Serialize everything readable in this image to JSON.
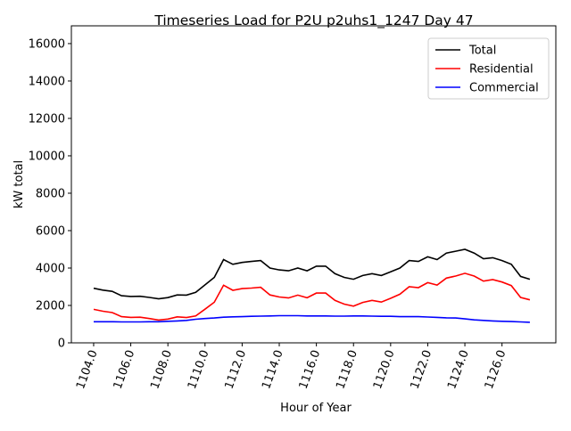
{
  "chart_data": {
    "type": "line",
    "title": "Timeseries Load for P2U p2uhs1_1247  Day 47",
    "xlabel": "Hour of Year",
    "ylabel": "kW total",
    "xlim": [
      1102.8,
      1128.9
    ],
    "ylim": [
      0,
      16950
    ],
    "xticks": [
      "1104.0",
      "1106.0",
      "1108.0",
      "1110.0",
      "1112.0",
      "1114.0",
      "1116.0",
      "1118.0",
      "1120.0",
      "1122.0",
      "1124.0",
      "1126.0"
    ],
    "xtick_values": [
      1104,
      1106,
      1108,
      1110,
      1112,
      1114,
      1116,
      1118,
      1120,
      1122,
      1124,
      1126
    ],
    "yticks": [
      "0",
      "2000",
      "4000",
      "6000",
      "8000",
      "10000",
      "12000",
      "14000",
      "16000"
    ],
    "ytick_values": [
      0,
      2000,
      4000,
      6000,
      8000,
      10000,
      12000,
      14000,
      16000
    ],
    "legend_position": "top-right",
    "x_start": 1104,
    "x_step": 0.5,
    "series": [
      {
        "name": "Total",
        "color": "#000000",
        "values": [
          2920,
          2820,
          2750,
          2520,
          2480,
          2490,
          2430,
          2350,
          2420,
          2560,
          2550,
          2700,
          3100,
          3500,
          4450,
          4200,
          4300,
          4350,
          4400,
          4000,
          3900,
          3850,
          4000,
          3850,
          4100,
          4100,
          3700,
          3500,
          3400,
          3600,
          3700,
          3600,
          3800,
          4000,
          4400,
          4350,
          4600,
          4450,
          4800,
          4900,
          5000,
          4800,
          4500,
          4550,
          4400,
          4200,
          3550,
          3400
        ]
      },
      {
        "name": "Residential",
        "color": "#ff0000",
        "values": [
          1790,
          1690,
          1620,
          1400,
          1360,
          1370,
          1300,
          1220,
          1270,
          1390,
          1350,
          1440,
          1800,
          2170,
          3080,
          2810,
          2900,
          2930,
          2970,
          2560,
          2450,
          2400,
          2550,
          2410,
          2660,
          2660,
          2270,
          2070,
          1960,
          2160,
          2270,
          2180,
          2380,
          2600,
          3000,
          2950,
          3220,
          3090,
          3460,
          3570,
          3720,
          3570,
          3300,
          3380,
          3250,
          3060,
          2430,
          2300
        ]
      },
      {
        "name": "Commercial",
        "color": "#0000ff",
        "values": [
          1130,
          1130,
          1130,
          1120,
          1120,
          1120,
          1130,
          1130,
          1150,
          1170,
          1200,
          1260,
          1300,
          1330,
          1370,
          1390,
          1400,
          1420,
          1430,
          1440,
          1450,
          1450,
          1450,
          1440,
          1440,
          1440,
          1430,
          1430,
          1440,
          1440,
          1430,
          1420,
          1420,
          1400,
          1400,
          1400,
          1380,
          1360,
          1340,
          1330,
          1280,
          1230,
          1200,
          1170,
          1150,
          1140,
          1120,
          1100
        ]
      }
    ]
  }
}
